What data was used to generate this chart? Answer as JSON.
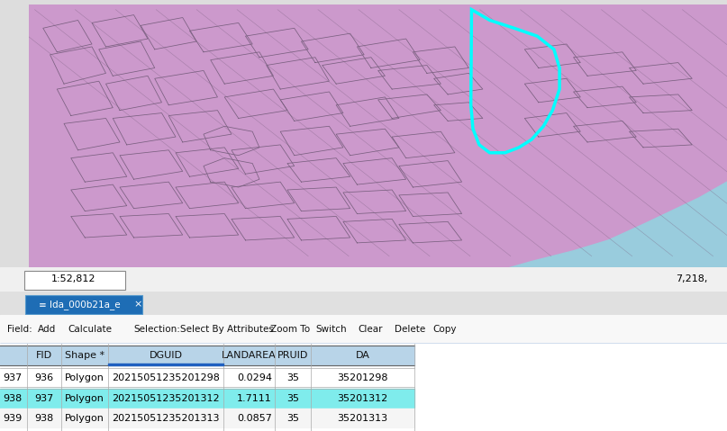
{
  "fig_width": 8.07,
  "fig_height": 4.79,
  "dpi": 100,
  "map_bg_color": "#CC99CC",
  "map_boundary_color": "#7A6080",
  "water_color": "#99CCDD",
  "highlight_outline_color": "#00FFFF",
  "table_header_bg": "#B8D4E8",
  "table_row_highlight": "#7FECEC",
  "table_row_alt": "#FFFFFF",
  "table_row_alt2": "#F5F5F5",
  "table_border": "#AAAAAA",
  "tab_bg": "#1E6DB5",
  "tab_text": "#FFFFFF",
  "scale_text": "1:52,812",
  "coord_text": "7,218,",
  "tab_label": "lda_000b21a_e",
  "col_headers": [
    "",
    "FID",
    "Shape *",
    "DGUID",
    "LANDAREA",
    "PRUID",
    "DA"
  ],
  "rows": [
    [
      "937",
      "936",
      "Polygon",
      "20215051235201298",
      "0.0294",
      "35",
      "35201298"
    ],
    [
      "938",
      "937",
      "Polygon",
      "20215051235201312",
      "1.7111",
      "35",
      "35201312"
    ],
    [
      "939",
      "938",
      "Polygon",
      "20215051235201313",
      "0.0857",
      "35",
      "35201313"
    ]
  ],
  "highlighted_row": 1
}
